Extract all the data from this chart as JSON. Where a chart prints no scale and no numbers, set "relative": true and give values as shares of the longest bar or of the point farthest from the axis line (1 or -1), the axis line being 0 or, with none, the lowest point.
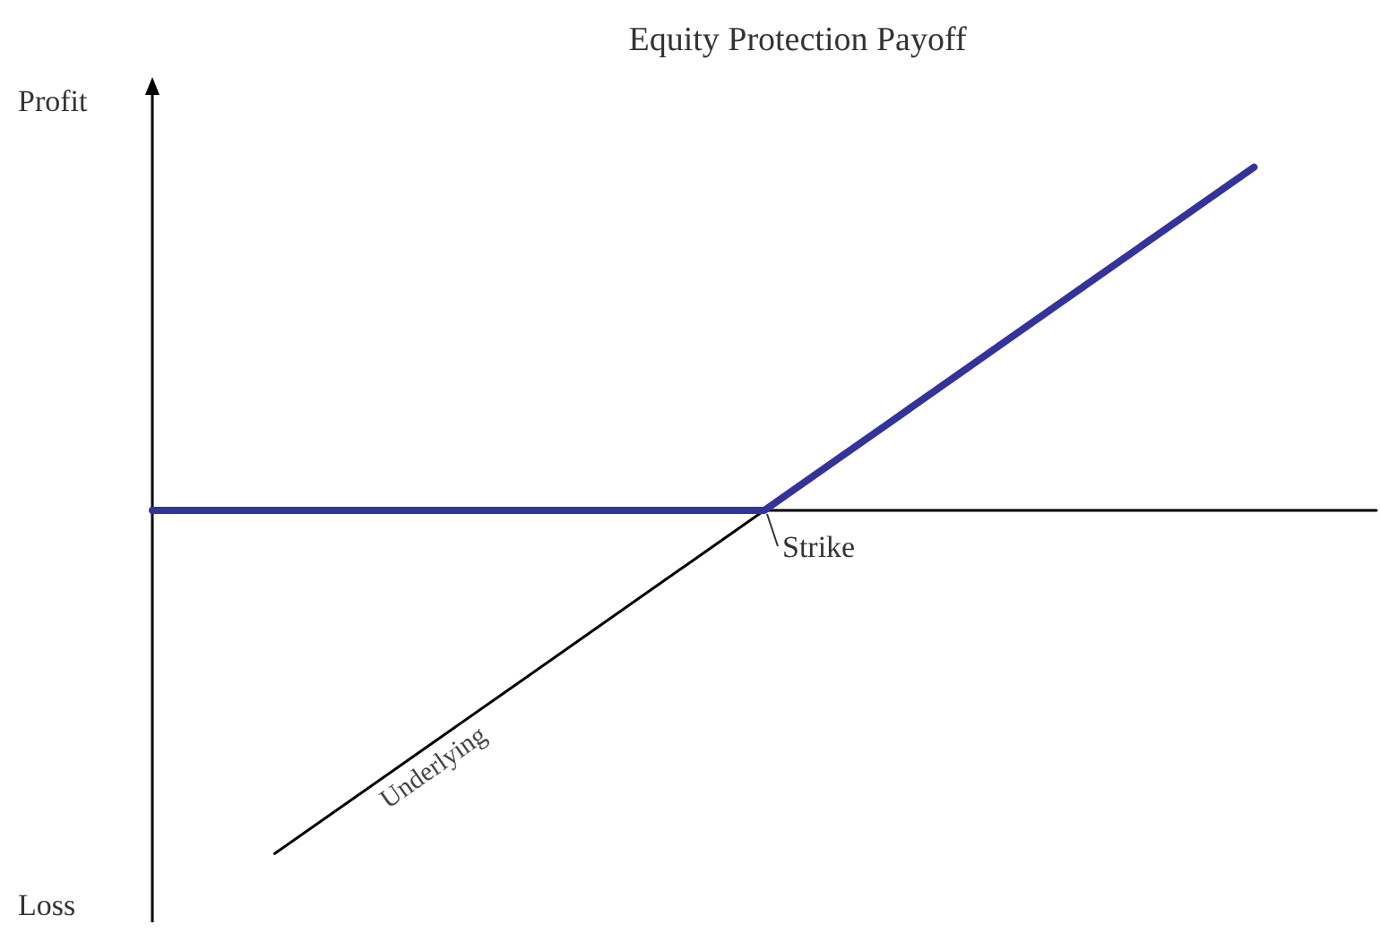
{
  "chart_data": {
    "type": "line",
    "title": "Equity Protection Payoff",
    "relative": true,
    "categories": [
      null,
      null,
      null,
      null,
      null,
      null,
      null,
      null,
      null,
      null,
      null
    ],
    "series": [
      {
        "color": "#333399",
        "values": [
          0,
          0,
          0,
          0,
          0,
          0,
          0.25,
          0.5,
          0.75,
          1,
          null
        ]
      },
      {
        "name": "Underlying",
        "color": "#000000",
        "values": [
          null,
          -1,
          -0.75,
          -0.5,
          -0.25,
          0,
          null,
          null,
          null,
          null,
          null
        ]
      }
    ],
    "annotations": [
      "Profit",
      "Loss",
      "Strike"
    ],
    "grid": false,
    "legend": false,
    "marker": "none",
    "line_style": "solid"
  }
}
